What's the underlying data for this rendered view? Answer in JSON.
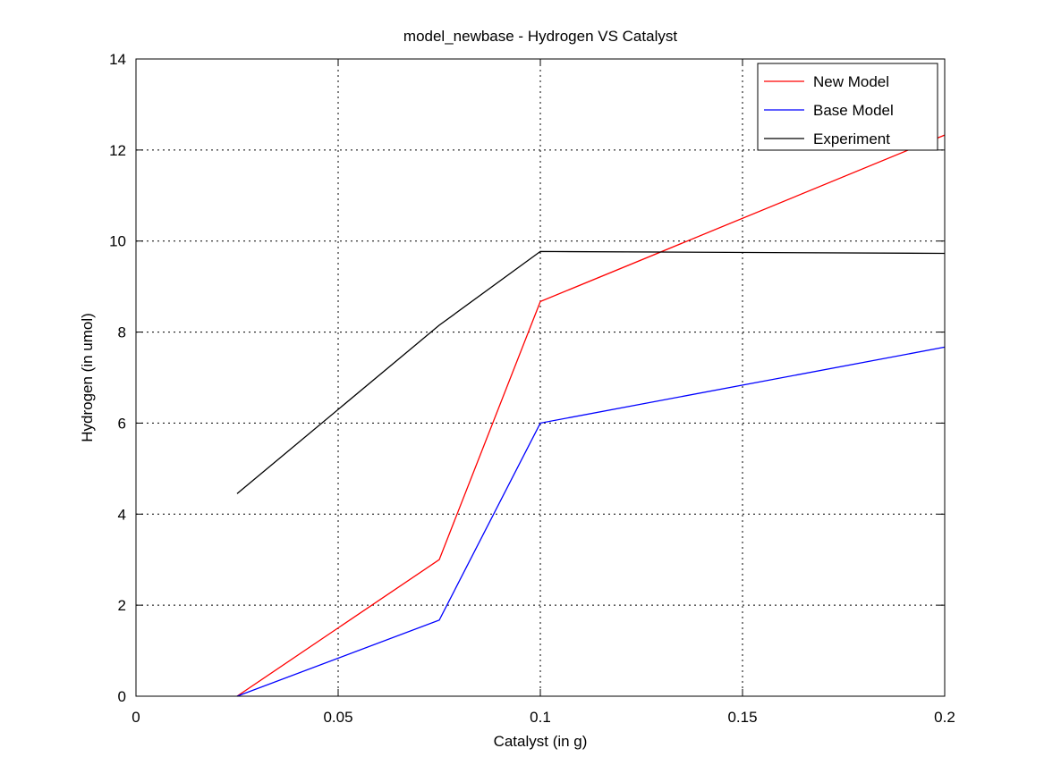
{
  "chart_data": {
    "type": "line",
    "title": "model_newbase - Hydrogen VS Catalyst",
    "xlabel": "Catalyst (in g)",
    "ylabel": "Hydrogen (in umol)",
    "xlim": [
      0,
      0.2
    ],
    "ylim": [
      0,
      14
    ],
    "x_ticks": [
      0,
      0.05,
      0.1,
      0.15,
      0.2
    ],
    "x_tick_labels": [
      "0",
      "0.05",
      "0.1",
      "0.15",
      "0.2"
    ],
    "y_ticks": [
      0,
      2,
      4,
      6,
      8,
      10,
      12,
      14
    ],
    "y_tick_labels": [
      "0",
      "2",
      "4",
      "6",
      "8",
      "10",
      "12",
      "14"
    ],
    "grid": true,
    "legend_position": "top-right",
    "x": [
      0.025,
      0.075,
      0.1,
      0.2
    ],
    "series": [
      {
        "name": "New Model",
        "color": "#ff0000",
        "values": [
          0,
          3.0,
          8.67,
          12.33
        ]
      },
      {
        "name": "Base Model",
        "color": "#0000ff",
        "values": [
          0,
          1.67,
          6.0,
          7.67
        ]
      },
      {
        "name": "Experiment",
        "color": "#000000",
        "values": [
          4.45,
          8.15,
          9.77,
          9.73
        ]
      }
    ]
  }
}
